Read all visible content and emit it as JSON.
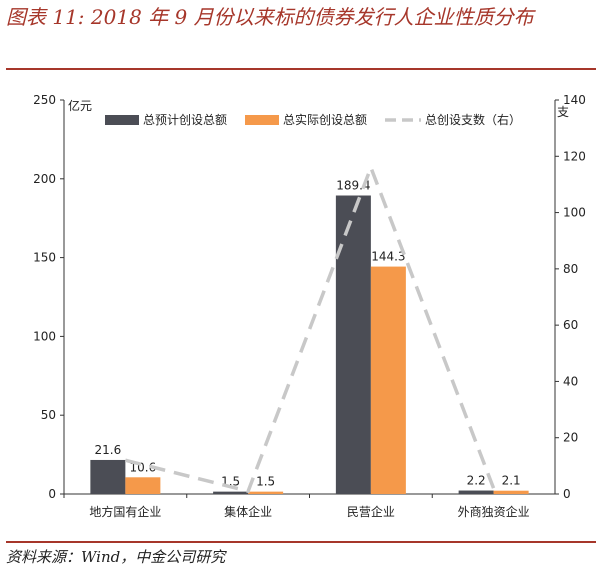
{
  "title": "图表 11: 2018 年 9 月份以来标的债券发行人企业性质分布",
  "source": "资料来源：Wind，中金公司研究",
  "colors": {
    "title": "#a6362a",
    "series_total_plan": "#4b4d55",
    "series_total_actual": "#f5994a",
    "series_count": "#c8c8c8"
  },
  "chart_data": {
    "type": "bar",
    "categories": [
      "地方国有企业",
      "集体企业",
      "民营企业",
      "外商独资企业"
    ],
    "series": [
      {
        "name": "总预计创设总额",
        "type": "bar",
        "axis": "left",
        "values": [
          21.6,
          1.5,
          189.4,
          2.2
        ],
        "labels": [
          "21.6",
          "1.5",
          "189.4",
          "2.2"
        ]
      },
      {
        "name": "总实际创设总额",
        "type": "bar",
        "axis": "left",
        "values": [
          10.6,
          1.5,
          144.3,
          2.1
        ],
        "labels": [
          "10.6",
          "1.5",
          "144.3",
          "2.1"
        ]
      },
      {
        "name": "总创设支数（右）",
        "type": "line",
        "style": "dashed",
        "axis": "right",
        "values": [
          12,
          1,
          116,
          2
        ]
      }
    ],
    "ylabel_left": "亿元",
    "ylabel_right": "支",
    "ylim_left": [
      0,
      250
    ],
    "ylim_right": [
      0,
      140
    ],
    "yticks_left": [
      "0",
      "50",
      "100",
      "150",
      "200",
      "250"
    ],
    "yticks_right": [
      "0",
      "20",
      "40",
      "60",
      "80",
      "100",
      "120",
      "140"
    ],
    "legend_position": "top",
    "grid": false
  }
}
